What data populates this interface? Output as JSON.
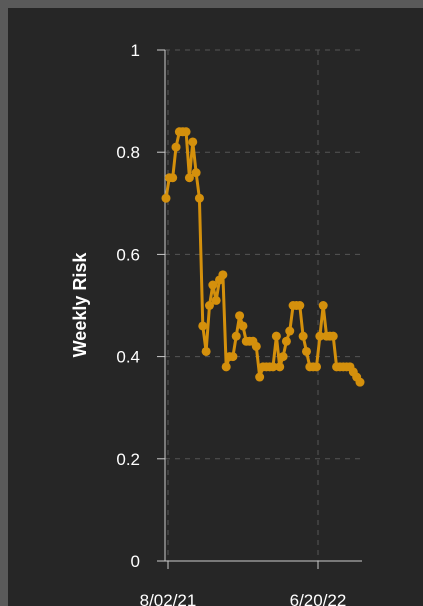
{
  "chart_data": {
    "type": "line",
    "ylabel": "Weekly Risk",
    "xlabel": "",
    "ylim": [
      0,
      1
    ],
    "yticks": [
      "0",
      "0.2",
      "0.4",
      "0.6",
      "0.8",
      "1"
    ],
    "xtick_labels": [
      "8/02/21",
      "6/20/22"
    ],
    "grid": true,
    "colors": {
      "line": "#d4900c",
      "background": "#262626",
      "grid": "#555555",
      "axis": "#cccccc"
    },
    "series": [
      {
        "values": [
          0.71,
          0.75,
          0.75,
          0.81,
          0.84,
          0.84,
          0.84,
          0.75,
          0.82,
          0.76,
          0.71,
          0.46,
          0.41,
          0.5,
          0.54,
          0.51,
          0.55,
          0.56,
          0.38,
          0.4,
          0.4,
          0.44,
          0.48,
          0.46,
          0.43,
          0.43,
          0.43,
          0.42,
          0.36,
          0.38,
          0.38,
          0.38,
          0.38,
          0.44,
          0.38,
          0.4,
          0.43,
          0.45,
          0.5,
          0.5,
          0.5,
          0.44,
          0.41,
          0.38,
          0.38,
          0.38,
          0.44,
          0.5,
          0.44,
          0.44,
          0.44,
          0.38,
          0.38,
          0.38,
          0.38,
          0.38,
          0.37,
          0.36,
          0.35
        ]
      }
    ]
  }
}
